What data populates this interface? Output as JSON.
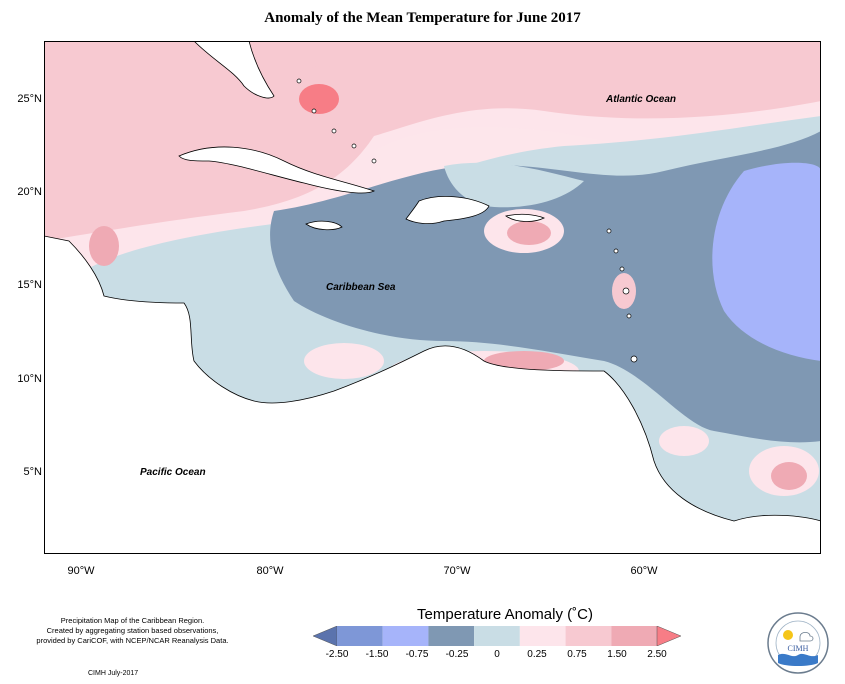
{
  "title": "Anomaly of the Mean Temperature for June 2017",
  "lat_labels": [
    "25°N",
    "20°N",
    "15°N",
    "10°N",
    "5°N"
  ],
  "lon_labels": [
    "90°W",
    "80°W",
    "70°W",
    "60°W"
  ],
  "places": {
    "atlantic": "Atlantic Ocean",
    "caribbean": "Caribbean Sea",
    "pacific": "Pacific Ocean"
  },
  "legend": {
    "title": "Temperature Anomaly (˚C)",
    "ticks": [
      "-2.50",
      "-1.50",
      "-0.75",
      "-0.25",
      "0",
      "0.25",
      "0.75",
      "1.50",
      "2.50"
    ],
    "colors": [
      "#5b73ad",
      "#7e97d7",
      "#a6b4fa",
      "#7f98b3",
      "#c9dde5",
      "#fde5eb",
      "#f7c9d1",
      "#efaab4",
      "#f77d86"
    ]
  },
  "credit": {
    "line1": "Precipitation Map of the Caribbean Region.",
    "line2": "Created by aggregating station based observations,",
    "line3": "provided by CariCOF, with NCEP/NCAR Reanalysis Data."
  },
  "footer": "CIMH July-2017",
  "logo_text": "CIMH"
}
